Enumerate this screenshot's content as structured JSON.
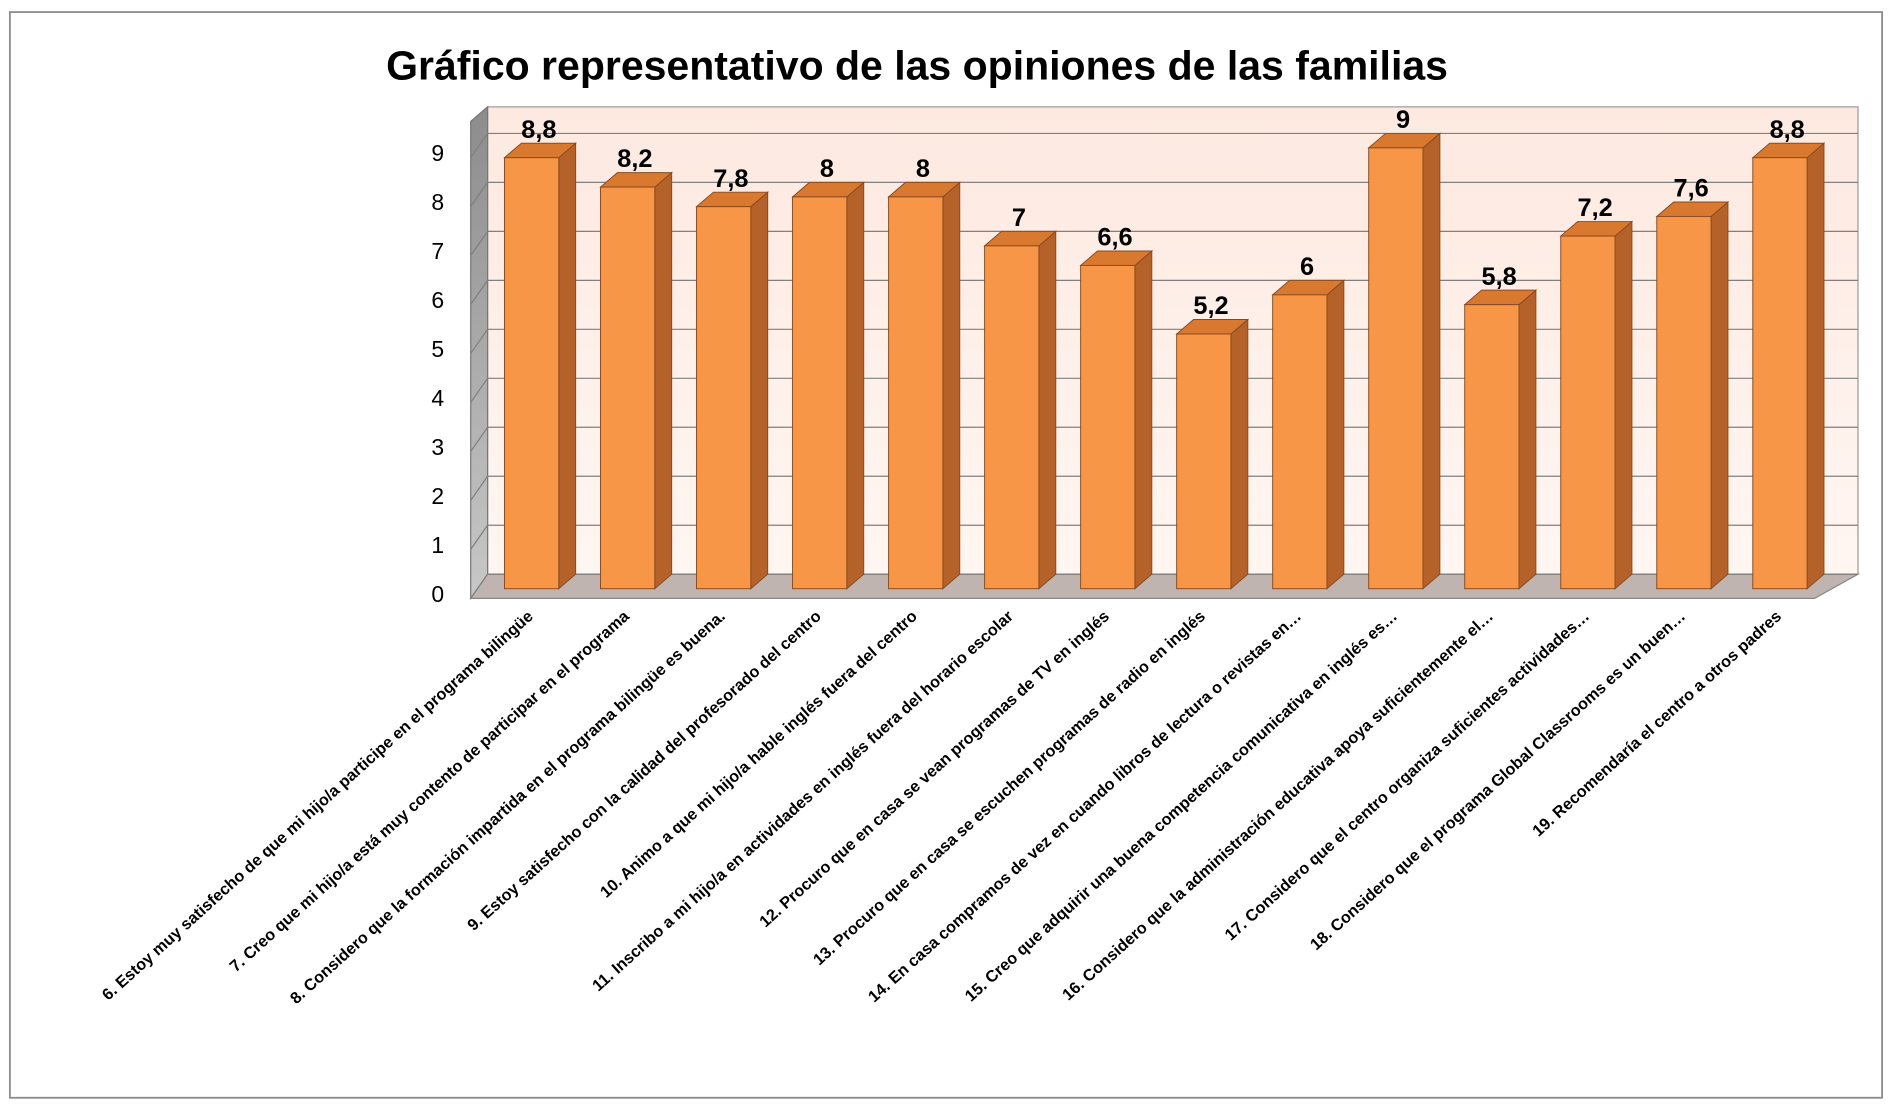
{
  "chart_data": {
    "type": "bar3d",
    "title": "Gráfico representativo  de las opiniones de las familias",
    "categories": [
      "6. Estoy muy satisfecho de que mi hijo/a participe en el programa bilingüe",
      "7. Creo que mi hijo/a está muy contento de participar en el programa",
      "8. Considero que la formación impartida en el programa bilingüe es buena.",
      "9. Estoy satisfecho con la calidad del profesorado  del centro",
      "10. Animo a que mi hijo/a hable inglés fuera del centro",
      "11. Inscribo a mi hijo/a en actividades en inglés fuera del horario escolar",
      "12. Procuro que en casa se vean programas de TV en inglés",
      "13. Procuro que en casa se escuchen programas de radio en inglés",
      "14. En casa compramos de vez en cuando libros de lectura o revistas en…",
      "15. Creo que adquirir una buena competencia comunicativa en inglés es…",
      "16. Considero que la administración educativa apoya suficientemente el…",
      "17. Considero que el centro organiza suficientes actividades…",
      "18. Considero que el programa Global Classrooms es un buen…",
      "19.  Recomendaría el centro a otros padres"
    ],
    "values": [
      8.8,
      8.2,
      7.8,
      8,
      8,
      7,
      6.6,
      5.2,
      6,
      9,
      5.8,
      7.2,
      7.6,
      8.8
    ],
    "value_labels": [
      "8,8",
      "8,2",
      "7,8",
      "8",
      "8",
      "7",
      "6,6",
      "5,2",
      "6",
      "9",
      "5,8",
      "7,2",
      "7,6",
      "8,8"
    ],
    "color": "#f79646",
    "ylim": [
      0,
      9
    ],
    "yticks": [
      0,
      1,
      2,
      3,
      4,
      5,
      6,
      7,
      8,
      9
    ],
    "grid": true
  }
}
